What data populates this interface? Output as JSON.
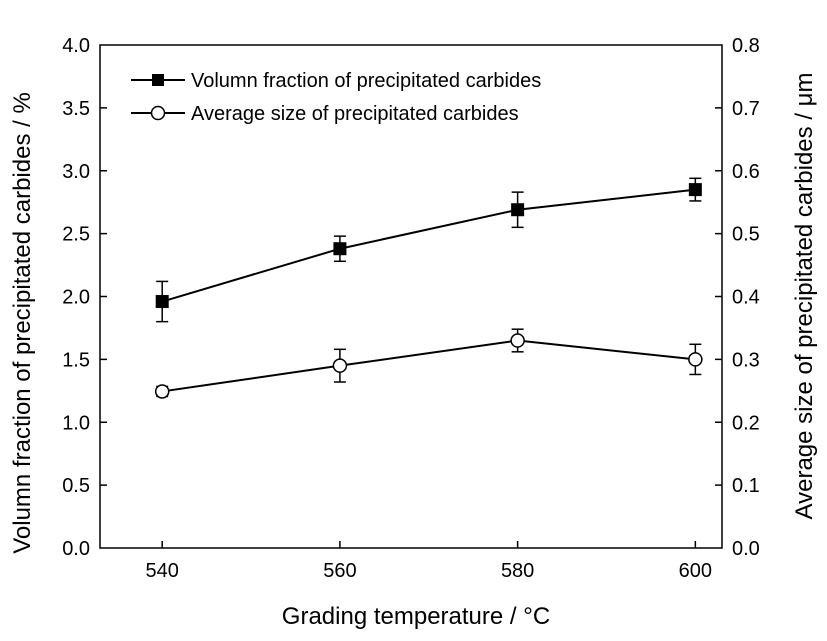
{
  "chart_data": {
    "type": "line",
    "xlabel": "Grading temperature / °C",
    "ylabel_left": "Volumn fraction of precipitated carbides / %",
    "ylabel_right": "Average size of precipitated carbides / μm",
    "x": [
      540,
      560,
      580,
      600
    ],
    "xticks": [
      "540",
      "560",
      "580",
      "600"
    ],
    "xlim": [
      533,
      603
    ],
    "ylim_left": [
      0.0,
      4.0
    ],
    "ylim_right": [
      0.0,
      0.8
    ],
    "yticks_left": [
      "0.0",
      "0.5",
      "1.0",
      "1.5",
      "2.0",
      "2.5",
      "3.0",
      "3.5",
      "4.0"
    ],
    "yticks_right": [
      "0.0",
      "0.1",
      "0.2",
      "0.3",
      "0.4",
      "0.5",
      "0.6",
      "0.7",
      "0.8"
    ],
    "legend_position": "top-left",
    "series": [
      {
        "name": "Volumn fraction of precipitated carbides",
        "axis": "left",
        "marker": "filled-square",
        "color": "#000000",
        "values": [
          1.96,
          2.38,
          2.69,
          2.85
        ],
        "errors": [
          0.16,
          0.1,
          0.14,
          0.09
        ]
      },
      {
        "name": "Average size of precipitated carbides",
        "axis": "right",
        "marker": "open-circle",
        "color": "#000000",
        "values": [
          0.249,
          0.29,
          0.33,
          0.3
        ],
        "errors": [
          0.008,
          0.026,
          0.018,
          0.024
        ]
      }
    ]
  }
}
